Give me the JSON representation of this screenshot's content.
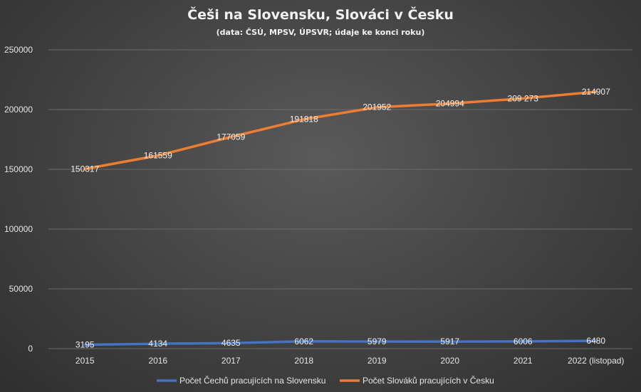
{
  "chart_data": {
    "type": "line",
    "title": "Češi na Slovensku, Slováci v Česku",
    "subtitle": "(data: ČSÚ, MPSV, ÚPSVR; údaje ke konci roku)",
    "categories": [
      "2015",
      "2016",
      "2017",
      "2018",
      "2019",
      "2020",
      "2021",
      "2022 (listopad)"
    ],
    "ylim": [
      0,
      250000
    ],
    "yticks": [
      0,
      50000,
      100000,
      150000,
      200000,
      250000
    ],
    "ytick_labels": [
      "0",
      "50000",
      "100000",
      "150000",
      "200000",
      "250000"
    ],
    "grid": true,
    "legend_position": "bottom",
    "series": [
      {
        "name": "Počet Čechů pracujících na Slovensku",
        "color": "#4472c4",
        "values": [
          3195,
          4134,
          4635,
          6062,
          5979,
          5917,
          6006,
          6480
        ],
        "labels": [
          "3195",
          "4134",
          "4635",
          "6062",
          "5979",
          "5917",
          "6006",
          "6480"
        ]
      },
      {
        "name": "Počet Slováků pracujících v Česku",
        "color": "#ed7d31",
        "values": [
          150317,
          161559,
          177059,
          191818,
          201952,
          204994,
          209273,
          214907
        ],
        "labels": [
          "150317",
          "161559",
          "177059",
          "191818",
          "201952",
          "204994",
          "209 273",
          "214907"
        ]
      }
    ]
  }
}
